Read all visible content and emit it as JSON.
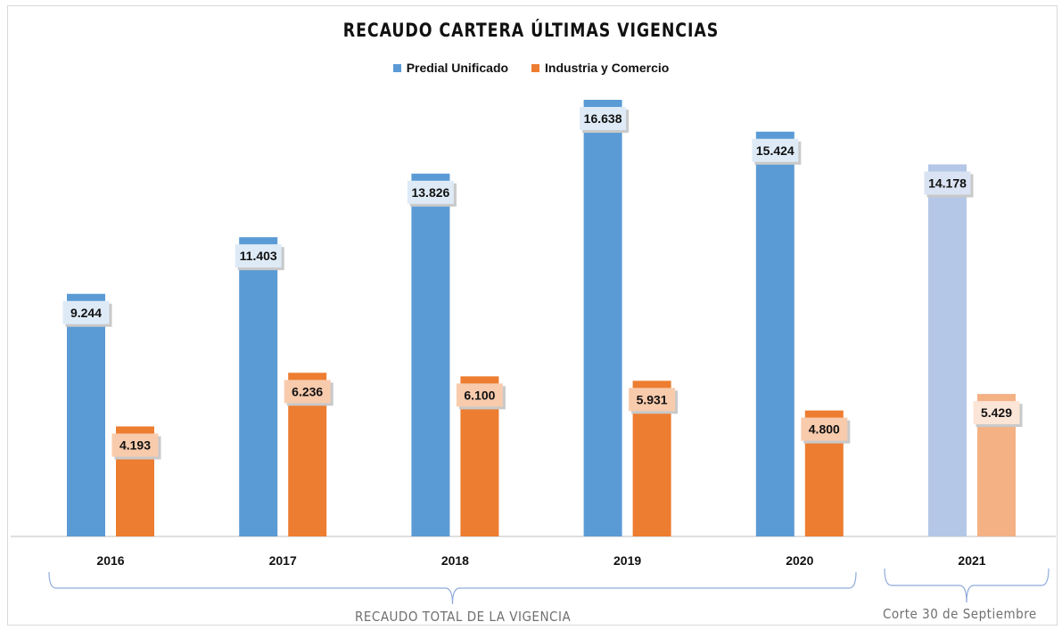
{
  "chart_data": {
    "type": "bar",
    "title": "RECAUDO CARTERA ÚLTIMAS VIGENCIAS",
    "categories": [
      "2016",
      "2017",
      "2018",
      "2019",
      "2020",
      "2021"
    ],
    "series": [
      {
        "name": "Predial Unificado",
        "values": [
          9244,
          11403,
          13826,
          16638,
          15424,
          14178
        ],
        "labels": [
          "9.244",
          "11.403",
          "13.826",
          "16.638",
          "15.424",
          "14.178"
        ],
        "color": "#5b9bd5",
        "faded_color": "#b4c7e7"
      },
      {
        "name": "Industria y Comercio",
        "values": [
          4193,
          6236,
          6100,
          5931,
          4800,
          5429
        ],
        "labels": [
          "4.193",
          "6.236",
          "6.100",
          "5.931",
          "4.800",
          "5.429"
        ],
        "color": "#ed7d31",
        "faded_color": "#f4b183"
      }
    ],
    "faded_categories": [
      "2021"
    ],
    "ylim": [
      0,
      17000
    ],
    "grid": false,
    "legend": "top-center",
    "annotations": [
      {
        "text": "RECAUDO TOTAL DE LA VIGENCIA",
        "spans": [
          "2016",
          "2020"
        ]
      },
      {
        "text": "Corte 30 de Septiembre",
        "spans": [
          "2021"
        ]
      }
    ]
  }
}
